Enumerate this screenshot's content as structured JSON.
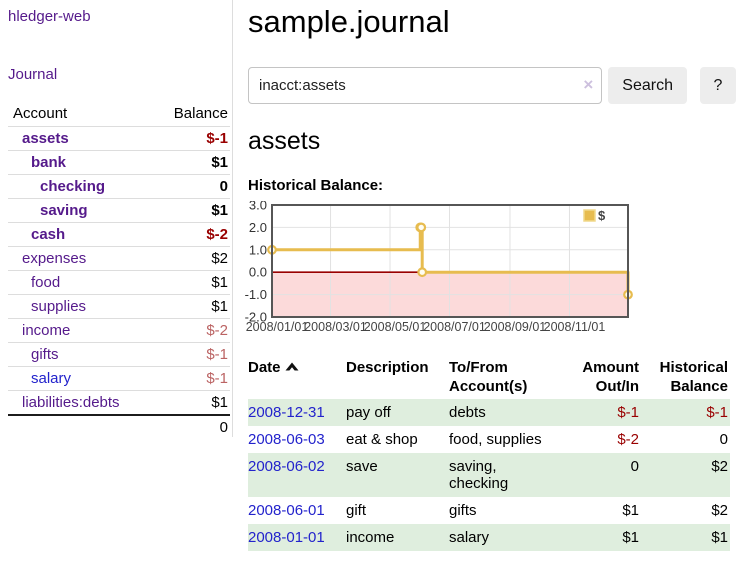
{
  "app": {
    "brand": "hledger-web",
    "nav_journal": "Journal"
  },
  "palette": {
    "link_purple": "#551a8b",
    "link_blue": "#2323cc",
    "negative_strong": "#990000",
    "negative_soft": "#bb6363",
    "row_green": "#dfeede",
    "chart_line": "#e7bc4f",
    "chart_point_fill": "#fffdf2",
    "chart_negative_fill": "#fcdada",
    "chart_zero_line": "#990000",
    "chart_grid": "#e2e2e2",
    "chart_border": "#565656"
  },
  "sidebar": {
    "header": {
      "account": "Account",
      "balance": "Balance"
    },
    "accounts": [
      {
        "label": "assets",
        "level": 1,
        "bold": true,
        "link_color": "purple",
        "balance": "$-1",
        "balance_style": "neg-strong"
      },
      {
        "label": "bank",
        "level": 2,
        "bold": true,
        "link_color": "purple",
        "balance": "$1",
        "balance_style": "pos"
      },
      {
        "label": "checking",
        "level": 3,
        "bold": true,
        "link_color": "purple",
        "balance": "0",
        "balance_style": "pos"
      },
      {
        "label": "saving",
        "level": 3,
        "bold": true,
        "link_color": "purple",
        "balance": "$1",
        "balance_style": "pos"
      },
      {
        "label": "cash",
        "level": 2,
        "bold": true,
        "link_color": "purple",
        "balance": "$-2",
        "balance_style": "neg-strong"
      },
      {
        "label": "expenses",
        "level": 1,
        "bold": false,
        "link_color": "purple",
        "balance": "$2",
        "balance_style": "pos"
      },
      {
        "label": "food",
        "level": 2,
        "bold": false,
        "link_color": "purple",
        "balance": "$1",
        "balance_style": "pos"
      },
      {
        "label": "supplies",
        "level": 2,
        "bold": false,
        "link_color": "purple",
        "balance": "$1",
        "balance_style": "pos"
      },
      {
        "label": "income",
        "level": 1,
        "bold": false,
        "link_color": "purple",
        "balance": "$-2",
        "balance_style": "neg-soft"
      },
      {
        "label": "gifts",
        "level": 2,
        "bold": false,
        "link_color": "purple",
        "balance": "$-1",
        "balance_style": "neg-soft"
      },
      {
        "label": "salary",
        "level": 2,
        "bold": false,
        "link_color": "blue",
        "balance": "$-1",
        "balance_style": "neg-soft"
      },
      {
        "label": "liabilities:debts",
        "level": 1,
        "bold": false,
        "link_color": "purple",
        "balance": "$1",
        "balance_style": "pos"
      }
    ],
    "total": "0"
  },
  "main": {
    "title": "sample.journal",
    "search": {
      "value": "inacct:assets",
      "clear_glyph": "×",
      "button_label": "Search",
      "help_label": "?"
    },
    "account_heading": "assets",
    "chart_label": "Historical Balance:"
  },
  "chart_data": {
    "type": "line",
    "title": "Historical Balance:",
    "legend": [
      {
        "label": "$"
      }
    ],
    "legend_position": "top-right",
    "step": true,
    "grid": true,
    "negative_region_shaded": true,
    "ylim": [
      -2.0,
      3.0
    ],
    "y_ticks": [
      3.0,
      2.0,
      1.0,
      0.0,
      -1.0,
      -2.0
    ],
    "x_range": [
      "2008-01-01",
      "2008-12-31"
    ],
    "x_ticks": [
      "2008-01-01",
      "2008-03-01",
      "2008-05-01",
      "2008-07-01",
      "2008-09-01",
      "2008-11-01"
    ],
    "x_tick_labels": [
      "2008/01/01",
      "2008/03/01",
      "2008/05/01",
      "2008/07/01",
      "2008/09/01",
      "2008/11/01"
    ],
    "series": [
      {
        "name": "$",
        "points": [
          [
            "2008-01-01",
            1
          ],
          [
            "2008-06-01",
            2
          ],
          [
            "2008-06-02",
            2
          ],
          [
            "2008-06-03",
            0
          ],
          [
            "2008-12-31",
            -1
          ]
        ]
      }
    ]
  },
  "register": {
    "columns": [
      {
        "label": "Date",
        "align": "left",
        "sorted": "asc"
      },
      {
        "label": "Description",
        "align": "left"
      },
      {
        "label": "To/From Account(s)",
        "align": "left"
      },
      {
        "label": "Amount Out/In",
        "align": "right"
      },
      {
        "label": "Historical Balance",
        "align": "right"
      }
    ],
    "rows": [
      {
        "date": "2008-12-31",
        "description": "pay off",
        "accounts": "debts",
        "amount": "$-1",
        "amount_neg": true,
        "balance": "$-1",
        "balance_neg": true,
        "green": true
      },
      {
        "date": "2008-06-03",
        "description": "eat & shop",
        "accounts": "food, supplies",
        "amount": "$-2",
        "amount_neg": true,
        "balance": "0",
        "balance_neg": false,
        "green": false
      },
      {
        "date": "2008-06-02",
        "description": "save",
        "accounts": "saving, checking",
        "amount": "0",
        "amount_neg": false,
        "balance": "$2",
        "balance_neg": false,
        "green": true
      },
      {
        "date": "2008-06-01",
        "description": "gift",
        "accounts": "gifts",
        "amount": "$1",
        "amount_neg": false,
        "balance": "$2",
        "balance_neg": false,
        "green": false
      },
      {
        "date": "2008-01-01",
        "description": "income",
        "accounts": "salary",
        "amount": "$1",
        "amount_neg": false,
        "balance": "$1",
        "balance_neg": false,
        "green": true
      }
    ]
  }
}
